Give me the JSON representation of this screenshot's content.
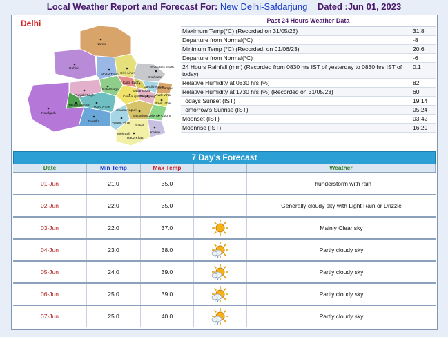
{
  "header": {
    "prefix": "Local Weather Report and Forecast For:",
    "station": "New Delhi-Safdarjung",
    "dated": "Dated :Jun 01, 2023"
  },
  "map": {
    "title": "Delhi",
    "labels": [
      "Narela",
      "Rohini",
      "Shahdara",
      "Model Town",
      "Civil Lines",
      "Seelampur",
      "Patel Nagar",
      "Punjabi Bagh",
      "Rajouri Garden",
      "Karol Bagh",
      "Delhi Cantt",
      "Najafgarh",
      "Dwarka",
      "Vasant Vihar",
      "Safdarjung",
      "Hauz Khas",
      "Kalkaji",
      "Defence Colony",
      "Preet Vihar",
      "Gandhi Nagar",
      "Vivek Vihar",
      "Shahdara North",
      "Sadar Bazar",
      "Connaught Place",
      "Daryaganj",
      "Chanakyapuri",
      "Mehrauli",
      "Saket"
    ]
  },
  "past24": {
    "title": "Past 24 Hours Weather Data",
    "rows": [
      {
        "label": "Maximum Temp(°C) (Recorded on 31/05/23)",
        "value": "31.8"
      },
      {
        "label": "Departure from Normal(°C)",
        "value": "-8"
      },
      {
        "label": "Minimum Temp (°C) (Recorded. on 01/06/23)",
        "value": "20.6"
      },
      {
        "label": "Departure from Normal(°C)",
        "value": "-6"
      },
      {
        "label": "24 Hours Rainfall (mm) (Recorded from 0830 hrs IST of yesterday to 0830 hrs IST of today)",
        "value": "0.1"
      },
      {
        "label": "Relative Humidity at 0830 hrs (%)",
        "value": "82"
      },
      {
        "label": "Relative Humidity at 1730 hrs (%) (Recorded on 31/05/23)",
        "value": "60"
      },
      {
        "label": "Todays Sunset (IST)",
        "value": "19:14"
      },
      {
        "label": "Tomorrow's Sunrise (IST)",
        "value": "05:24"
      },
      {
        "label": "Moonset (IST)",
        "value": "03:42"
      },
      {
        "label": "Moonrise (IST)",
        "value": "16:29"
      }
    ]
  },
  "forecast": {
    "title": "7 Day's Forecast",
    "columns": {
      "date": "Date",
      "min": "Min Temp",
      "max": "Max Temp",
      "weather": "Weather"
    },
    "column_colors": {
      "date": "#2e7d2e",
      "min": "#1a3cc8",
      "max": "#c82020",
      "weather": "#2e7d2e"
    },
    "rows": [
      {
        "date": "01-Jun",
        "min": "21.0",
        "max": "35.0",
        "icon": "thunderstorm-icon",
        "weather": "Thunderstorm with rain"
      },
      {
        "date": "02-Jun",
        "min": "22.0",
        "max": "35.0",
        "icon": "drizzle-icon",
        "weather": "Generally cloudy sky with Light Rain or Drizzle"
      },
      {
        "date": "03-Jun",
        "min": "22.0",
        "max": "37.0",
        "icon": "sun-icon",
        "weather": "Mainly Clear sky"
      },
      {
        "date": "04-Jun",
        "min": "23.0",
        "max": "38.0",
        "icon": "partly-cloudy-icon",
        "weather": "Partly cloudy sky"
      },
      {
        "date": "05-Jun",
        "min": "24.0",
        "max": "39.0",
        "icon": "partly-cloudy-icon",
        "weather": "Partly cloudy sky"
      },
      {
        "date": "06-Jun",
        "min": "25.0",
        "max": "39.0",
        "icon": "partly-cloudy-icon",
        "weather": "Partly cloudy sky"
      },
      {
        "date": "07-Jun",
        "min": "25.0",
        "max": "40.0",
        "icon": "partly-cloudy-icon",
        "weather": "Partly cloudy sky"
      }
    ]
  }
}
